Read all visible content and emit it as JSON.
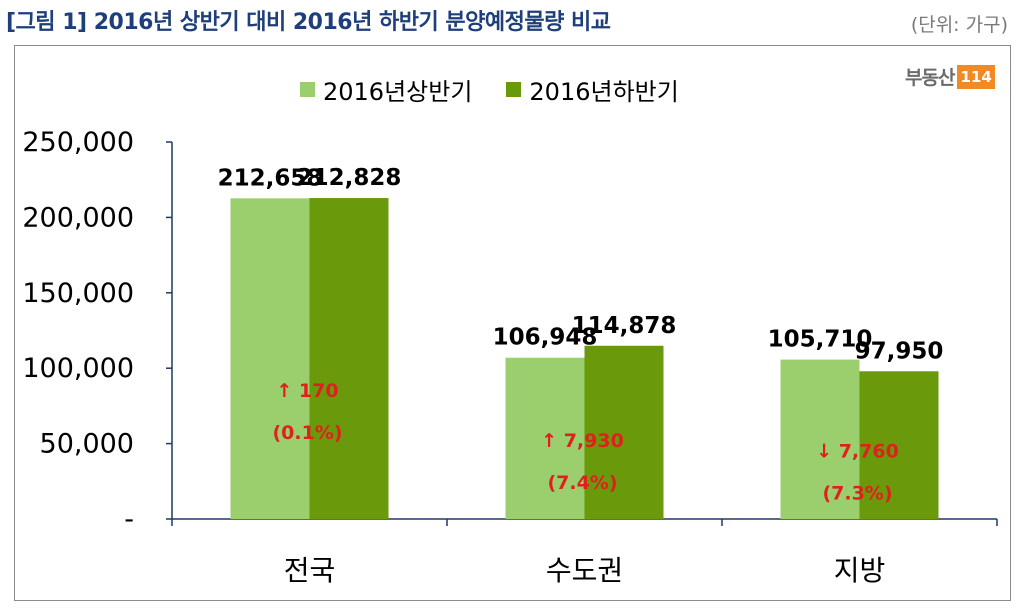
{
  "title": "[그림 1] 2016년 상반기 대비 2016년 하반기 분양예정물량 비교",
  "unit": "(단위: 가구)",
  "logo": {
    "text": "부동산",
    "box": "114"
  },
  "colors": {
    "series1": "#9bcf6e",
    "series2": "#6a9a0c",
    "change": "#e0201c",
    "axis": "#203864",
    "title": "#1f3f7a"
  },
  "chart_data": {
    "type": "bar",
    "title": "",
    "xlabel": "",
    "ylabel": "",
    "categories": [
      "전국",
      "수도권",
      "지방"
    ],
    "series": [
      {
        "name": "2016년상반기",
        "values": [
          212658,
          106948,
          105710
        ],
        "labels": [
          "212,658",
          "106,948",
          "105,710"
        ]
      },
      {
        "name": "2016년하반기",
        "values": [
          212828,
          114878,
          97950
        ],
        "labels": [
          "212,828",
          "114,878",
          "97,950"
        ]
      }
    ],
    "ylim": [
      0,
      250000
    ],
    "yticks": [
      0,
      50000,
      100000,
      150000,
      200000,
      250000
    ],
    "ytick_labels": [
      "-",
      "50,000",
      "100,000",
      "150,000",
      "200,000",
      "250,000"
    ],
    "annotations": [
      {
        "category": "전국",
        "change": "↑ 170",
        "pct": "(0.1%)"
      },
      {
        "category": "수도권",
        "change": "↑ 7,930",
        "pct": "(7.4%)"
      },
      {
        "category": "지방",
        "change": "↓ 7,760",
        "pct": "(7.3%)"
      }
    ],
    "legend_position": "top-center",
    "grid": false
  }
}
